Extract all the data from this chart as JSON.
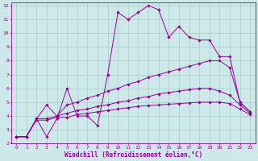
{
  "title": "",
  "xlabel": "Windchill (Refroidissement éolien,°C)",
  "ylabel": "",
  "xlim": [
    -0.5,
    23.5
  ],
  "ylim": [
    2,
    12.2
  ],
  "xticks": [
    0,
    1,
    2,
    3,
    4,
    5,
    6,
    7,
    8,
    9,
    10,
    11,
    12,
    13,
    14,
    15,
    16,
    17,
    18,
    19,
    20,
    21,
    22,
    23
  ],
  "yticks": [
    2,
    3,
    4,
    5,
    6,
    7,
    8,
    9,
    10,
    11,
    12
  ],
  "background_color": "#cce8e8",
  "grid_color": "#aacccc",
  "line_color": "#990099",
  "curves": [
    {
      "x": [
        0,
        1,
        2,
        3,
        4,
        5,
        6,
        7,
        8,
        9,
        10,
        11,
        12,
        13,
        14,
        15,
        16,
        17,
        18,
        19,
        20,
        21,
        22,
        23
      ],
      "y": [
        2.5,
        2.5,
        3.8,
        2.5,
        3.8,
        6.0,
        4.0,
        4.0,
        3.3,
        7.0,
        11.5,
        11.0,
        11.5,
        12.0,
        11.7,
        9.7,
        10.5,
        9.7,
        9.5,
        9.5,
        8.3,
        8.3,
        5.0,
        4.3
      ]
    },
    {
      "x": [
        0,
        1,
        2,
        3,
        4,
        5,
        6,
        7,
        8,
        9,
        10,
        11,
        12,
        13,
        14,
        15,
        16,
        17,
        18,
        19,
        20,
        21,
        22,
        23
      ],
      "y": [
        2.5,
        2.5,
        3.8,
        4.8,
        4.0,
        4.8,
        5.0,
        5.3,
        5.5,
        5.8,
        6.0,
        6.3,
        6.5,
        6.8,
        7.0,
        7.2,
        7.4,
        7.6,
        7.8,
        8.0,
        8.0,
        7.5,
        5.0,
        4.3
      ]
    },
    {
      "x": [
        0,
        1,
        2,
        3,
        4,
        5,
        6,
        7,
        8,
        9,
        10,
        11,
        12,
        13,
        14,
        15,
        16,
        17,
        18,
        19,
        20,
        21,
        22,
        23
      ],
      "y": [
        2.5,
        2.5,
        3.8,
        3.8,
        4.0,
        4.2,
        4.4,
        4.5,
        4.7,
        4.8,
        5.0,
        5.1,
        5.3,
        5.4,
        5.6,
        5.7,
        5.8,
        5.9,
        6.0,
        6.0,
        5.8,
        5.5,
        4.8,
        4.2
      ]
    },
    {
      "x": [
        0,
        1,
        2,
        3,
        4,
        5,
        6,
        7,
        8,
        9,
        10,
        11,
        12,
        13,
        14,
        15,
        16,
        17,
        18,
        19,
        20,
        21,
        22,
        23
      ],
      "y": [
        2.5,
        2.5,
        3.7,
        3.7,
        3.9,
        3.9,
        4.1,
        4.2,
        4.3,
        4.4,
        4.5,
        4.6,
        4.7,
        4.75,
        4.8,
        4.85,
        4.9,
        4.95,
        5.0,
        5.0,
        5.0,
        4.9,
        4.5,
        4.1
      ]
    }
  ],
  "tick_fontsize": 4.5,
  "label_fontsize": 5.5,
  "marker": "D",
  "markersize": 1.8,
  "linewidth": 0.7
}
